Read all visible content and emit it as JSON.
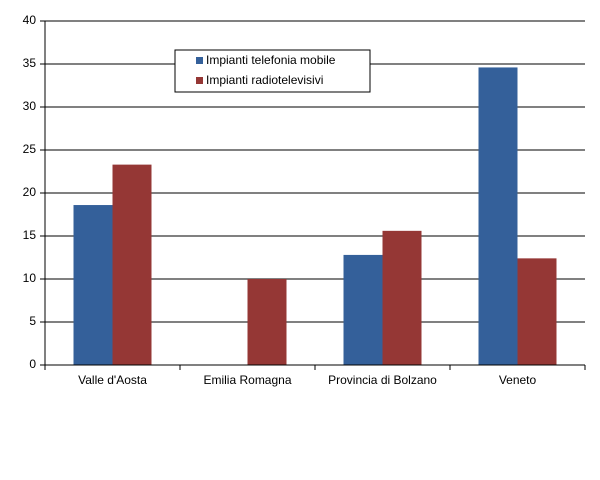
{
  "chart_data": {
    "type": "bar",
    "categories": [
      "Valle d'Aosta",
      "Emilia Romagna",
      "Provincia di Bolzano",
      "Veneto"
    ],
    "series": [
      {
        "name": "Impianti telefonia mobile",
        "color": "#34609a",
        "values": [
          18.6,
          null,
          12.8,
          34.6
        ]
      },
      {
        "name": "Impianti radiotelevisivi",
        "color": "#953735",
        "values": [
          23.3,
          10,
          15.6,
          12.4
        ]
      }
    ],
    "ylim": [
      0,
      40
    ],
    "yticks": [
      0,
      5,
      10,
      15,
      20,
      25,
      30,
      35,
      40
    ],
    "grid": true,
    "legend": "top"
  }
}
